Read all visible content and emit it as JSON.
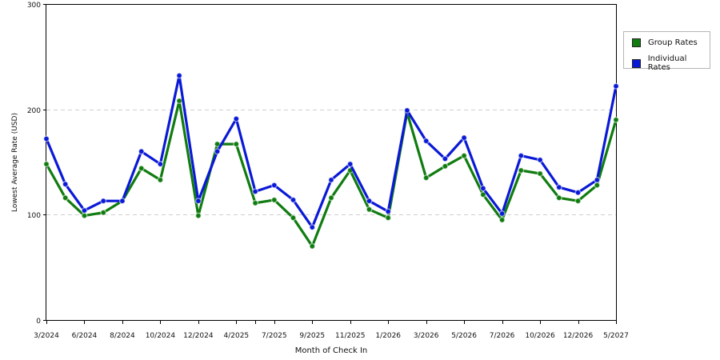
{
  "chart_data": {
    "type": "line",
    "xlabel": "Month of Check In",
    "ylabel": "Lowest Average Rate (USD)",
    "ylim": [
      0,
      300
    ],
    "yticks": [
      0,
      100,
      200,
      300
    ],
    "x_tick_labels": [
      "3/2024",
      "6/2024",
      "8/2024",
      "10/2024",
      "12/2024",
      "4/2025",
      "7/2025",
      "9/2025",
      "11/2025",
      "1/2026",
      "3/2026",
      "5/2026",
      "7/2026",
      "10/2026",
      "12/2026",
      "5/2027"
    ],
    "grid": "horizontal dashed",
    "legend_position": "right",
    "series": [
      {
        "name": "Group Rates",
        "color": "#107c10",
        "values": [
          148,
          116,
          99,
          102,
          113,
          144,
          133,
          208,
          99,
          167,
          167,
          111,
          114,
          97,
          70,
          116,
          142,
          105,
          97,
          197,
          135,
          146,
          156,
          119,
          95,
          142,
          139,
          116,
          113,
          128,
          190
        ]
      },
      {
        "name": "Individual Rates",
        "color": "#0a19d6",
        "values": [
          172,
          129,
          104,
          113,
          113,
          160,
          148,
          232,
          113,
          160,
          191,
          122,
          128,
          114,
          88,
          133,
          148,
          113,
          103,
          199,
          170,
          153,
          173,
          125,
          101,
          156,
          152,
          126,
          121,
          133,
          222
        ]
      }
    ]
  }
}
